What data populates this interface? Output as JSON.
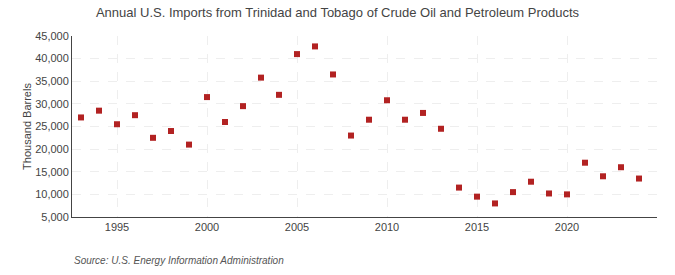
{
  "chart_data": {
    "type": "scatter",
    "title": "Annual U.S. Imports from Trinidad and Tobago of Crude Oil and Petroleum Products",
    "ylabel": "Thousand Barrels",
    "annotations": [
      "Source: U.S. Energy Information Administration"
    ],
    "x": [
      1993,
      1994,
      1995,
      1996,
      1997,
      1998,
      1999,
      2000,
      2001,
      2002,
      2003,
      2004,
      2005,
      2006,
      2007,
      2008,
      2009,
      2010,
      2011,
      2012,
      2013,
      2014,
      2015,
      2016,
      2017,
      2018,
      2019,
      2020,
      2021,
      2022,
      2023,
      2024
    ],
    "values": [
      27000,
      28500,
      25500,
      27500,
      22500,
      24000,
      21000,
      31500,
      26000,
      29500,
      35800,
      32000,
      41000,
      42700,
      36500,
      23000,
      26500,
      30800,
      26500,
      28000,
      24500,
      11500,
      9500,
      8000,
      10500,
      12800,
      10200,
      10000,
      17000,
      14000,
      16000,
      13500
    ],
    "color": "#b22222",
    "marker": "square",
    "xlim": [
      1992.5,
      2025
    ],
    "xticks": [
      1995,
      2000,
      2005,
      2010,
      2015,
      2020
    ],
    "ylim": [
      5000,
      45000
    ],
    "yticks": [
      {
        "value": 5000,
        "label": "5,000"
      },
      {
        "value": 10000,
        "label": "10,000"
      },
      {
        "value": 15000,
        "label": "15,000"
      },
      {
        "value": 20000,
        "label": "20,000"
      },
      {
        "value": 25000,
        "label": "25,000"
      },
      {
        "value": 30000,
        "label": "30,000"
      },
      {
        "value": 35000,
        "label": "35,000"
      },
      {
        "value": 40000,
        "label": "40,000"
      },
      {
        "value": 45000,
        "label": "45,000"
      }
    ],
    "grid": true
  }
}
